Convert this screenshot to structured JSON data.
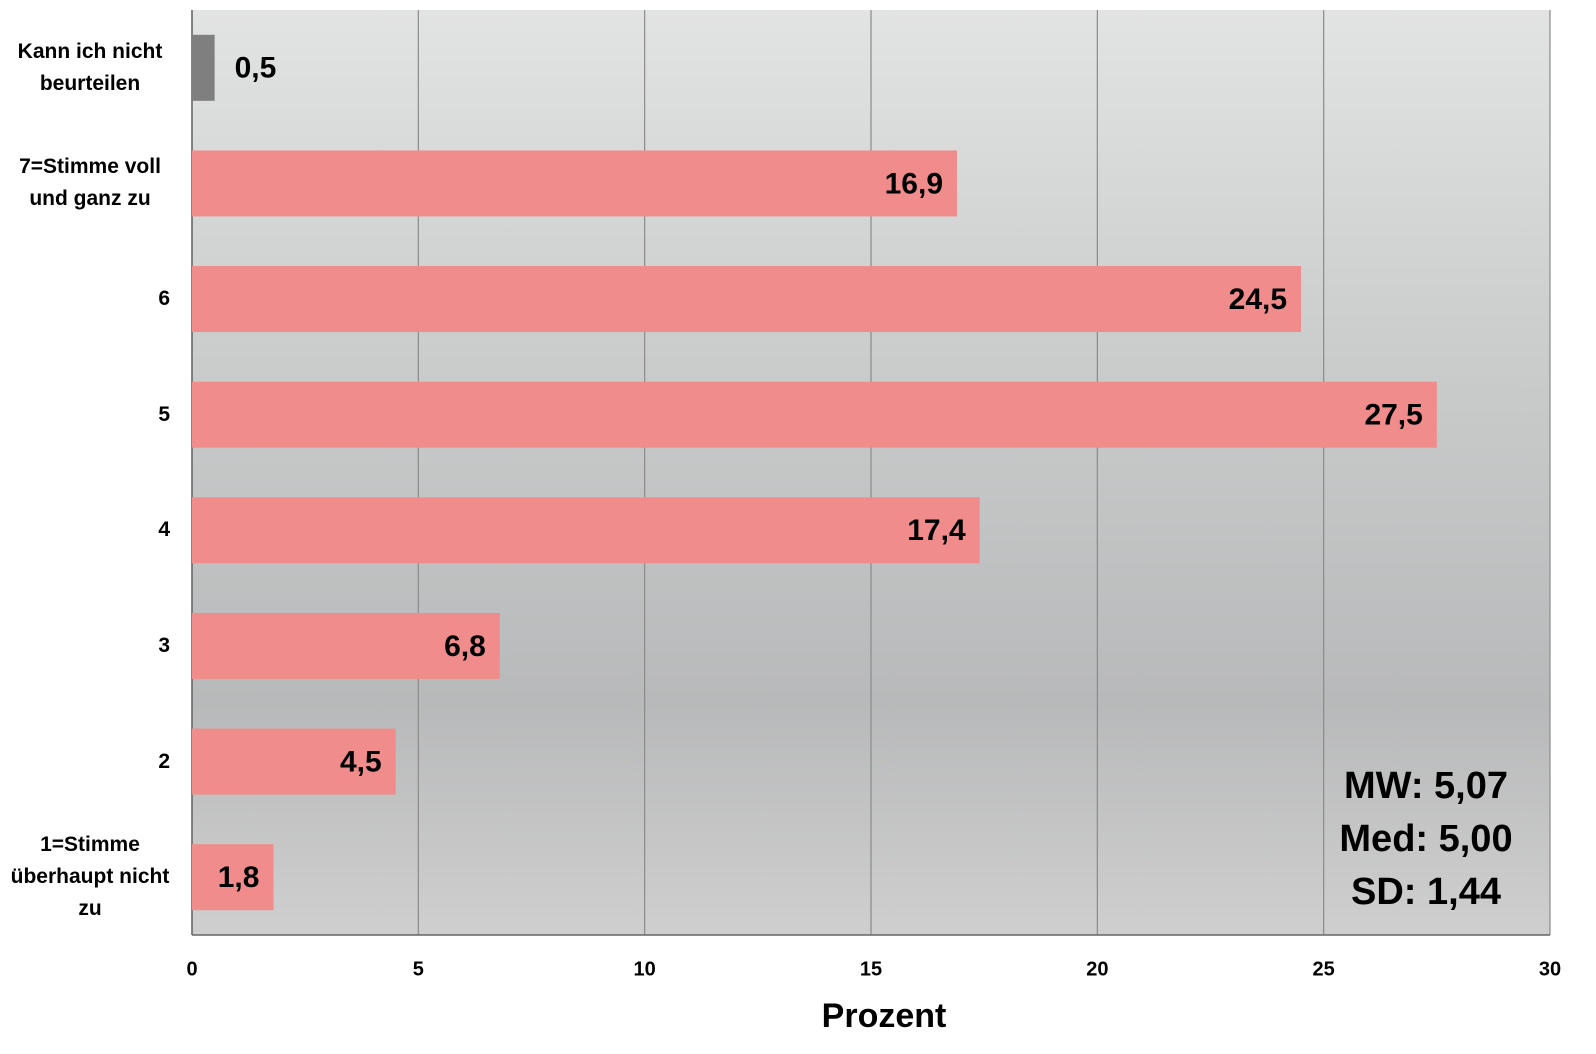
{
  "chart_data": {
    "type": "hbar",
    "categories": [
      "Kann ich nicht beurteilen",
      "7=Stimme voll und ganz zu",
      "6",
      "5",
      "4",
      "3",
      "2",
      "1=Stimme überhaupt nicht zu"
    ],
    "values": [
      0.5,
      16.9,
      24.5,
      27.5,
      17.4,
      6.8,
      4.5,
      1.8
    ],
    "value_labels": [
      "0,5",
      "16,9",
      "24,5",
      "27,5",
      "17,4",
      "6,8",
      "4,5",
      "1,8"
    ],
    "colors": [
      "#7f7f7f",
      "#f08c8c",
      "#f08c8c",
      "#f08c8c",
      "#f08c8c",
      "#f08c8c",
      "#f08c8c",
      "#f08c8c"
    ],
    "xlim": [
      0,
      30
    ],
    "xticks": [
      0,
      5,
      10,
      15,
      20,
      25,
      30
    ],
    "grid": true,
    "xlabel": "Prozent",
    "annotations": [
      "MW: 5,07",
      "Med: 5,00",
      "SD: 1,44"
    ]
  }
}
